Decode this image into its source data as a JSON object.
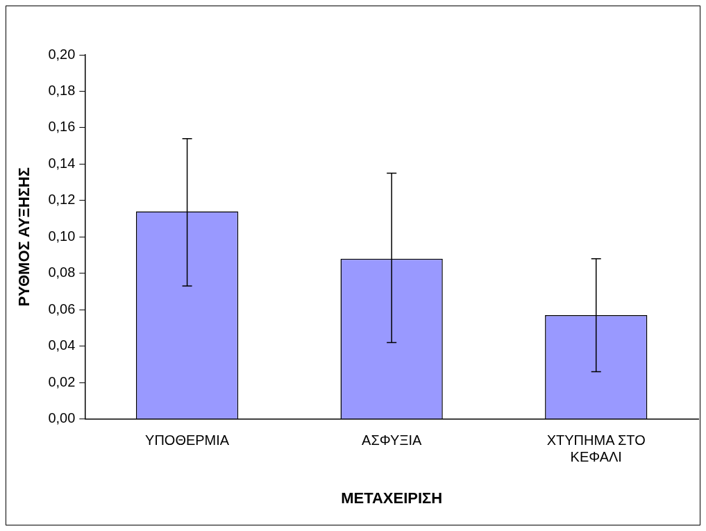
{
  "chart_data": {
    "type": "bar",
    "xlabel": "ΜΕΤΑΧΕΙΡΙΣΗ",
    "ylabel": "ΡΥΘΜΟΣ ΑΥΞΗΣΗΣ",
    "categories": [
      "ΥΠΟΘΕΡΜΙΑ",
      "ΑΣΦΥΞΙΑ",
      "ΧΤΥΠΗΜΑ ΣΤΟ ΚΕΦΑΛΙ"
    ],
    "values": [
      0.114,
      0.088,
      0.057
    ],
    "errors": [
      [
        0.073,
        0.154
      ],
      [
        0.042,
        0.135
      ],
      [
        0.026,
        0.088
      ]
    ],
    "color": "#9999ff",
    "ylim": [
      0,
      0.2
    ],
    "yticks": [
      {
        "value": 0,
        "label": "0,00"
      },
      {
        "value": 0.02,
        "label": "0,02"
      },
      {
        "value": 0.04,
        "label": "0,04"
      },
      {
        "value": 0.06,
        "label": "0,06"
      },
      {
        "value": 0.08,
        "label": "0,08"
      },
      {
        "value": 0.1,
        "label": "0,10"
      },
      {
        "value": 0.12,
        "label": "0,12"
      },
      {
        "value": 0.14,
        "label": "0,14"
      },
      {
        "value": 0.16,
        "label": "0,16"
      },
      {
        "value": 0.18,
        "label": "0,18"
      },
      {
        "value": 0.2,
        "label": "0,20"
      }
    ],
    "grid": false,
    "legend": false
  }
}
